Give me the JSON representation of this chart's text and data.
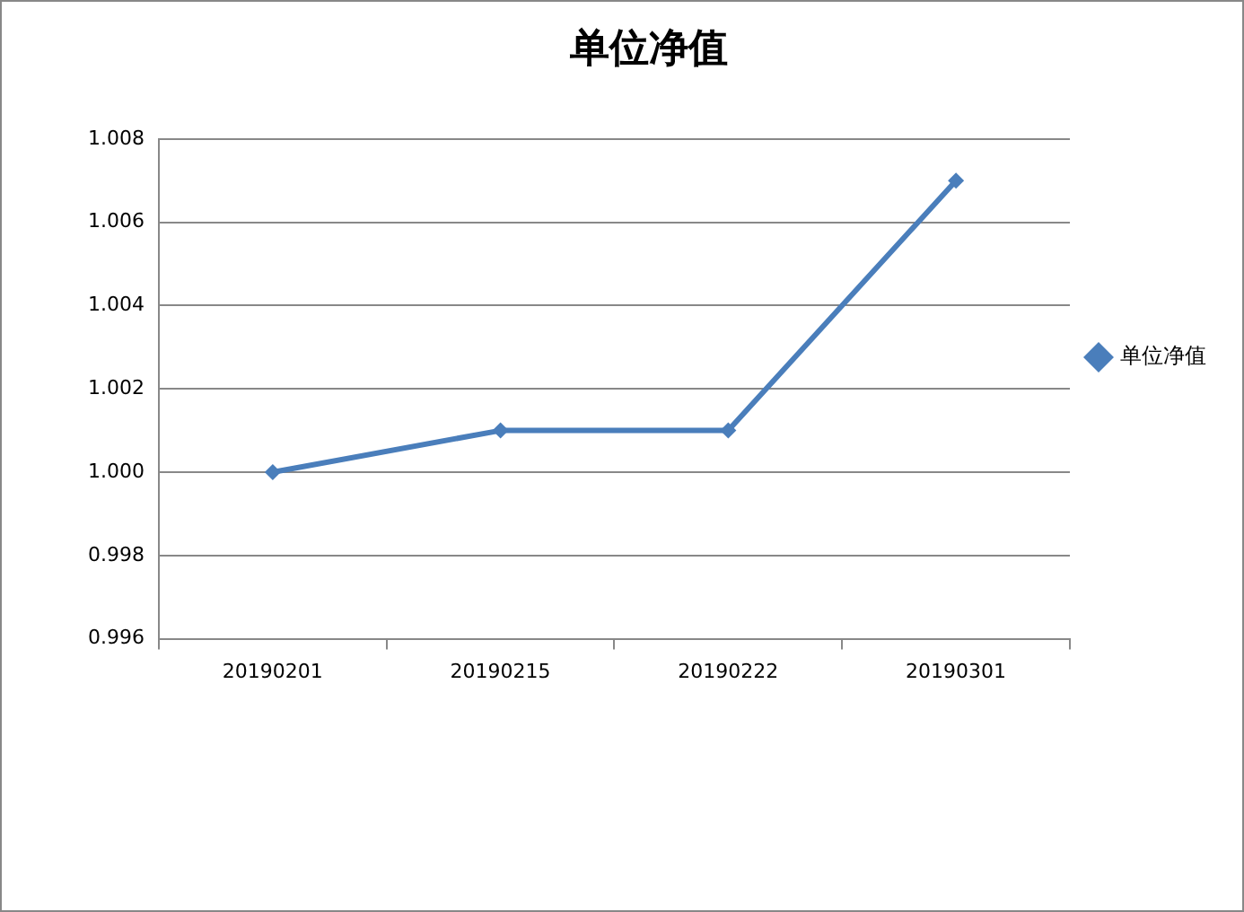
{
  "chart_data": {
    "type": "line",
    "title": "单位净值",
    "categories": [
      "20190201",
      "20190215",
      "20190222",
      "20190301"
    ],
    "series": [
      {
        "name": "单位净值",
        "color": "#4a7ebb",
        "values": [
          1.0,
          1.001,
          1.001,
          1.007
        ]
      }
    ],
    "ylim": [
      0.996,
      1.008
    ],
    "yticks": [
      {
        "value": 0.996,
        "label": "0.996"
      },
      {
        "value": 0.998,
        "label": "0.998"
      },
      {
        "value": 1.0,
        "label": "1.000"
      },
      {
        "value": 1.002,
        "label": "1.002"
      },
      {
        "value": 1.004,
        "label": "1.004"
      },
      {
        "value": 1.006,
        "label": "1.006"
      },
      {
        "value": 1.008,
        "label": "1.008"
      }
    ],
    "grid": "y",
    "legend": "right",
    "marker": "diamond",
    "line_style": "solid"
  }
}
